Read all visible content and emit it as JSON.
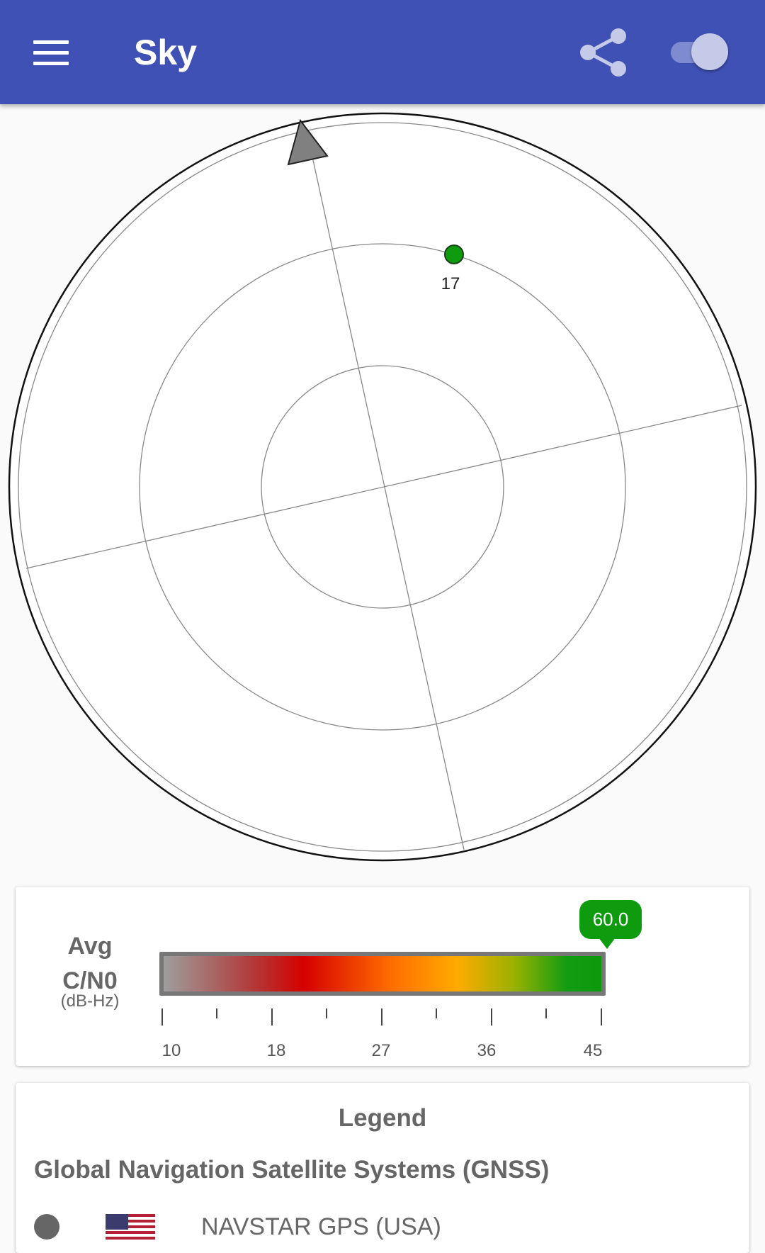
{
  "app": {
    "title": "Sky",
    "colors": {
      "primary": "#3f51b5",
      "signal_good": "#0e9b0e"
    },
    "icons": [
      "menu-icon",
      "share-icon",
      "toggle-switch"
    ]
  },
  "skyplot": {
    "satellites": [
      {
        "id": "17",
        "color": "#0e9b0e"
      }
    ]
  },
  "cn0": {
    "label_line1": "Avg",
    "label_line2": "C/N0",
    "unit": "(dB-Hz)",
    "value": "60.0",
    "scale_min": 10,
    "scale_max": 45,
    "tick_labels": [
      "10",
      "18",
      "27",
      "36",
      "45"
    ]
  },
  "legend": {
    "title": "Legend",
    "section_title": "Global Navigation Satellite Systems (GNSS)",
    "items": [
      {
        "label": "NAVSTAR GPS (USA)",
        "icon": "usa-flag-icon"
      }
    ]
  }
}
